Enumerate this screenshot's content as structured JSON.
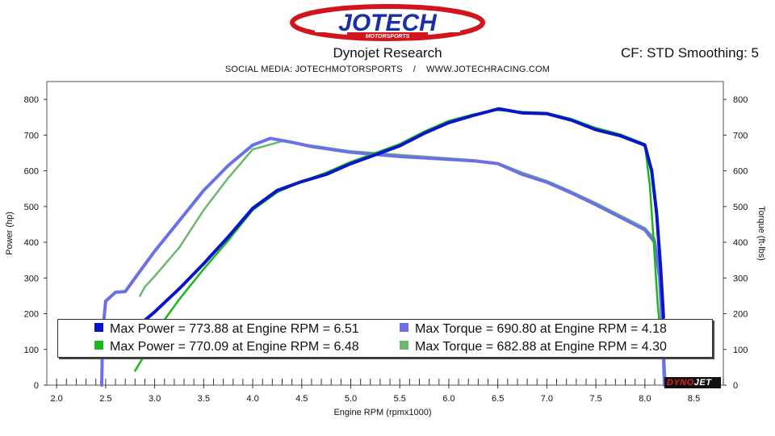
{
  "header": {
    "logo_text": "JOTECH",
    "logo_subtext": "MOTORSPORTS",
    "title": "Dynojet Research",
    "cf_info": "CF: STD Smoothing: 5",
    "social": "SOCIAL MEDIA: JOTECHMOTORSPORTS    /    WWW.JOTECHRACING.COM"
  },
  "colors": {
    "power_run1": "#0a14c8",
    "power_run2": "#1ab81e",
    "torque_run1": "#6b70e6",
    "torque_run2": "#6ab86e"
  },
  "legend": [
    {
      "label": "Max Power = 773.88 at Engine RPM = 6.51",
      "color": "#0a14c8"
    },
    {
      "label": "Max Torque = 690.80 at Engine RPM = 4.18",
      "color": "#6b70e6"
    },
    {
      "label": "Max Power = 770.09 at Engine RPM = 6.48",
      "color": "#1ab81e"
    },
    {
      "label": "Max Torque = 682.88 at Engine RPM = 4.30",
      "color": "#6ab86e"
    }
  ],
  "brand_badge": {
    "part1": "DYNO",
    "part2": "JET"
  },
  "chart_data": {
    "type": "line",
    "xlabel": "Engine RPM (rpmx1000)",
    "ylabel_left": "Power (hp)",
    "ylabel_right": "Torque (ft-lbs)",
    "xlim": [
      1.9,
      8.8
    ],
    "ylim": [
      0,
      850
    ],
    "x_ticks": [
      2.0,
      2.5,
      3.0,
      3.5,
      4.0,
      4.5,
      5.0,
      5.5,
      6.0,
      6.5,
      7.0,
      7.5,
      8.0,
      8.5
    ],
    "x_tick_labels": [
      "2.0",
      "2.5",
      "3.0",
      "3.5",
      "4.0",
      "4.5",
      "5.0",
      "5.5",
      "6.0",
      "6.5",
      "7.0",
      "7.5",
      "8.0",
      "8.5"
    ],
    "y_ticks": [
      0,
      100,
      200,
      300,
      400,
      500,
      600,
      700,
      800
    ],
    "y_tick_labels": [
      "0",
      "100",
      "200",
      "300",
      "400",
      "500",
      "600",
      "700",
      "800"
    ],
    "grid": false,
    "series": [
      {
        "key": "power_run1",
        "width": 4,
        "points": [
          [
            2.85,
            170
          ],
          [
            3.0,
            205
          ],
          [
            3.25,
            270
          ],
          [
            3.5,
            340
          ],
          [
            3.75,
            415
          ],
          [
            4.0,
            495
          ],
          [
            4.25,
            545
          ],
          [
            4.5,
            570
          ],
          [
            4.75,
            590
          ],
          [
            5.0,
            620
          ],
          [
            5.25,
            645
          ],
          [
            5.5,
            670
          ],
          [
            5.75,
            705
          ],
          [
            6.0,
            735
          ],
          [
            6.25,
            755
          ],
          [
            6.51,
            773.88
          ],
          [
            6.75,
            762
          ],
          [
            7.0,
            760
          ],
          [
            7.25,
            742
          ],
          [
            7.5,
            715
          ],
          [
            7.75,
            698
          ],
          [
            8.0,
            672
          ],
          [
            8.07,
            600
          ],
          [
            8.12,
            480
          ],
          [
            8.16,
            330
          ],
          [
            8.19,
            190
          ]
        ]
      },
      {
        "key": "power_run2",
        "width": 2.5,
        "points": [
          [
            2.8,
            40
          ],
          [
            2.9,
            85
          ],
          [
            3.0,
            145
          ],
          [
            3.25,
            240
          ],
          [
            3.5,
            325
          ],
          [
            3.75,
            405
          ],
          [
            4.0,
            490
          ],
          [
            4.25,
            540
          ],
          [
            4.5,
            570
          ],
          [
            4.75,
            595
          ],
          [
            5.0,
            625
          ],
          [
            5.25,
            650
          ],
          [
            5.5,
            675
          ],
          [
            5.75,
            710
          ],
          [
            6.0,
            740
          ],
          [
            6.25,
            758
          ],
          [
            6.48,
            770.09
          ],
          [
            6.75,
            765
          ],
          [
            7.0,
            762
          ],
          [
            7.25,
            745
          ],
          [
            7.5,
            720
          ],
          [
            7.75,
            702
          ],
          [
            8.0,
            675
          ],
          [
            8.05,
            560
          ],
          [
            8.09,
            400
          ],
          [
            8.13,
            230
          ],
          [
            8.16,
            140
          ]
        ]
      },
      {
        "key": "torque_run1",
        "width": 4,
        "points": [
          [
            2.46,
            0
          ],
          [
            2.47,
            150
          ],
          [
            2.5,
            235
          ],
          [
            2.6,
            260
          ],
          [
            2.7,
            262
          ],
          [
            2.8,
            300
          ],
          [
            3.0,
            375
          ],
          [
            3.25,
            460
          ],
          [
            3.5,
            545
          ],
          [
            3.75,
            615
          ],
          [
            4.0,
            672
          ],
          [
            4.18,
            690.8
          ],
          [
            4.4,
            680
          ],
          [
            4.6,
            668
          ],
          [
            5.0,
            652
          ],
          [
            5.5,
            640
          ],
          [
            6.0,
            632
          ],
          [
            6.25,
            628
          ],
          [
            6.5,
            620
          ],
          [
            6.75,
            590
          ],
          [
            7.0,
            568
          ],
          [
            7.25,
            538
          ],
          [
            7.5,
            505
          ],
          [
            7.75,
            470
          ],
          [
            8.0,
            435
          ],
          [
            8.1,
            400
          ],
          [
            8.15,
            300
          ],
          [
            8.18,
            150
          ],
          [
            8.2,
            0
          ]
        ]
      },
      {
        "key": "torque_run2",
        "width": 2.5,
        "points": [
          [
            2.85,
            250
          ],
          [
            2.9,
            275
          ],
          [
            3.0,
            305
          ],
          [
            3.25,
            385
          ],
          [
            3.5,
            490
          ],
          [
            3.75,
            580
          ],
          [
            4.0,
            660
          ],
          [
            4.3,
            682.88
          ],
          [
            4.5,
            675
          ],
          [
            5.0,
            655
          ],
          [
            5.5,
            645
          ],
          [
            6.0,
            635
          ],
          [
            6.25,
            630
          ],
          [
            6.5,
            622
          ],
          [
            6.75,
            595
          ],
          [
            7.0,
            572
          ],
          [
            7.25,
            542
          ],
          [
            7.5,
            510
          ],
          [
            7.75,
            475
          ],
          [
            8.0,
            440
          ],
          [
            8.1,
            410
          ],
          [
            8.15,
            320
          ],
          [
            8.18,
            180
          ],
          [
            8.21,
            20
          ]
        ]
      }
    ]
  }
}
